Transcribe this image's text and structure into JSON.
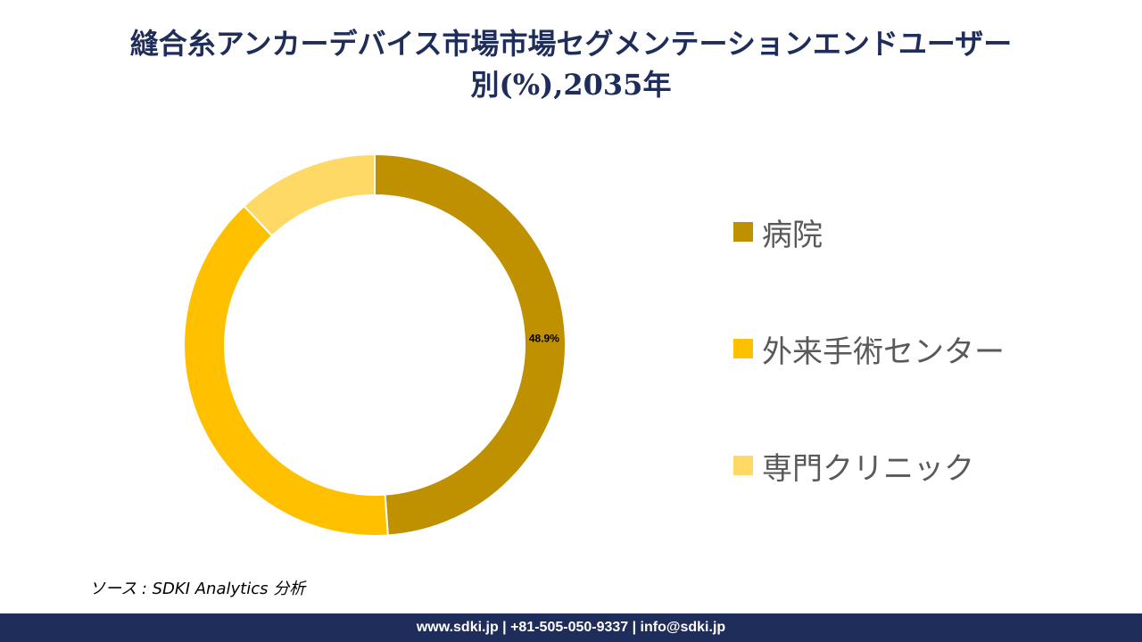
{
  "header": {
    "title_line1": "縫合糸アンカーデバイス市場市場セグメンテーションエンドユーザー",
    "title_line2": "別(%),2035年"
  },
  "chart_data": {
    "type": "pie",
    "donut": true,
    "categories": [
      "病院",
      "外来手術センター",
      "専門クリニック"
    ],
    "values": [
      48.9,
      39.1,
      12.0
    ],
    "colors": [
      "#bf9000",
      "#ffc000",
      "#ffd966"
    ],
    "data_labels": [
      "48.9%",
      "",
      ""
    ],
    "start_angle_deg": 0,
    "direction": "clockwise",
    "legend_position": "right"
  },
  "source": "ソース : SDKI Analytics 分析",
  "footer": "www.sdki.jp | +81-505-050-9337 | info@sdki.jp"
}
